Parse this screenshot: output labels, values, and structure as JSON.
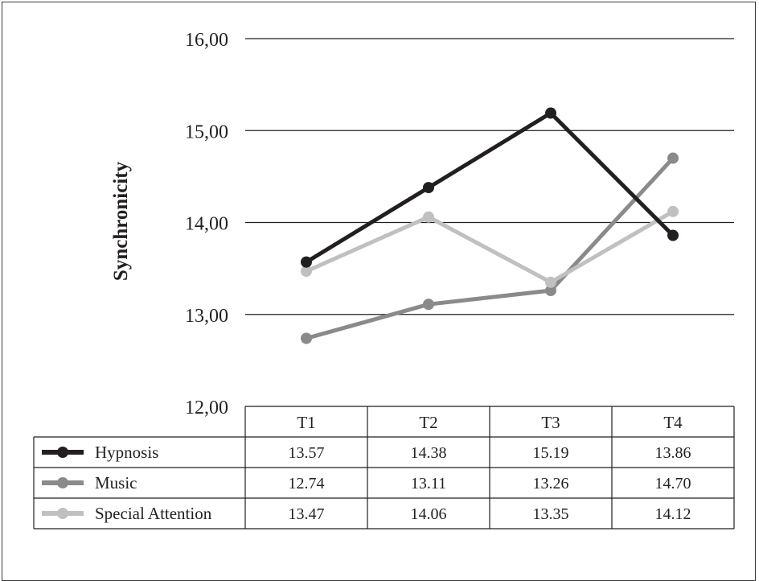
{
  "chart_data": {
    "type": "line",
    "title": "",
    "ylabel": "Synchronicity",
    "xlabel": "",
    "ylim": [
      12,
      16
    ],
    "yticks": [
      "16,00",
      "15,00",
      "14,00",
      "13,00",
      "12,00"
    ],
    "yticks_values": [
      16,
      15,
      14,
      13,
      12
    ],
    "categories": [
      "T1",
      "T2",
      "T3",
      "T4"
    ],
    "grid": true,
    "legend": "data-table-below",
    "series": [
      {
        "name": "Hypnosis",
        "color": "#231f20",
        "values": [
          13.57,
          14.38,
          15.19,
          13.86
        ],
        "labels": [
          "13.57",
          "14.38",
          "15.19",
          "13.86"
        ]
      },
      {
        "name": "Music",
        "color": "#8a8a8a",
        "values": [
          12.74,
          13.11,
          13.26,
          14.7
        ],
        "labels": [
          "12.74",
          "13.11",
          "13.26",
          "14.70"
        ]
      },
      {
        "name": "Special Attention",
        "color": "#c0c0c0",
        "values": [
          13.47,
          14.06,
          13.35,
          14.12
        ],
        "labels": [
          "13.47",
          "14.06",
          "13.35",
          "14.12"
        ]
      }
    ]
  }
}
